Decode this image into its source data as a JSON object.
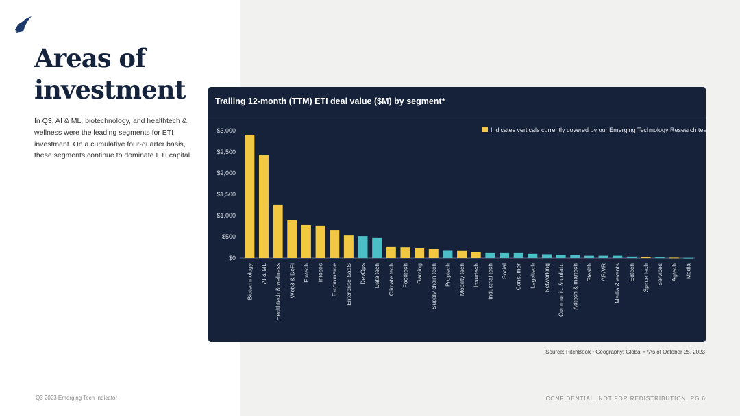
{
  "heading": "Areas of investment",
  "heading_lines": [
    "Areas of",
    "investment"
  ],
  "intro": "In Q3, AI & ML, biotechnology, and healthtech & wellness were the leading segments for ETI investment. On a cumulative four-quarter basis, these segments continue to dominate ETI capital.",
  "source": "Source: PitchBook • Geography: Global • *As of October 25, 2023",
  "footer_left": "Q3 2023 Emerging Tech Indicator",
  "footer_right": "CONFIDENTIAL. NOT FOR REDISTRIBUTION.  PG 6",
  "colors": {
    "covered": "#f2c843",
    "other": "#4bbfc6",
    "panel": "#15223a"
  },
  "chart_data": {
    "type": "bar",
    "title": "Trailing 12-month (TTM) ETI deal value ($M) by segment*",
    "legend": "Indicates verticals currently covered by our Emerging Technology Research team",
    "legend_placement": "top-right",
    "ylim": [
      0,
      3000
    ],
    "yticks": [
      0,
      500,
      1000,
      1500,
      2000,
      2500,
      3000
    ],
    "ytick_labels": [
      "$0",
      "$500",
      "$1,000",
      "$1,500",
      "$2,000",
      "$2,500",
      "$3,000"
    ],
    "categories": [
      "Biotechnology",
      "AI & ML",
      "Healthtech & wellness",
      "Web3 & DeFi",
      "Fintech",
      "Infosec",
      "E-commerce",
      "Enterprise SaaS",
      "DevOps",
      "Data tech",
      "Climate tech",
      "Foodtech",
      "Gaming",
      "Supply chain tech",
      "Proptech",
      "Mobility tech",
      "Insurtech",
      "Industrial tech",
      "Social",
      "Consumer",
      "Legaltech",
      "Networking",
      "Communic. & collab.",
      "Adtech & martech",
      "Stealth",
      "AR/VR",
      "Media & events",
      "Edtech",
      "Space tech",
      "Services",
      "Agtech",
      "Media"
    ],
    "values": [
      2900,
      2420,
      1260,
      890,
      775,
      760,
      660,
      530,
      515,
      470,
      260,
      255,
      230,
      210,
      170,
      165,
      140,
      115,
      115,
      115,
      100,
      90,
      75,
      75,
      55,
      55,
      55,
      35,
      25,
      15,
      10,
      5
    ],
    "covered": [
      true,
      true,
      true,
      true,
      true,
      true,
      true,
      true,
      false,
      false,
      true,
      true,
      true,
      true,
      false,
      true,
      true,
      false,
      false,
      false,
      false,
      false,
      false,
      false,
      false,
      false,
      false,
      false,
      true,
      false,
      true,
      false
    ]
  }
}
